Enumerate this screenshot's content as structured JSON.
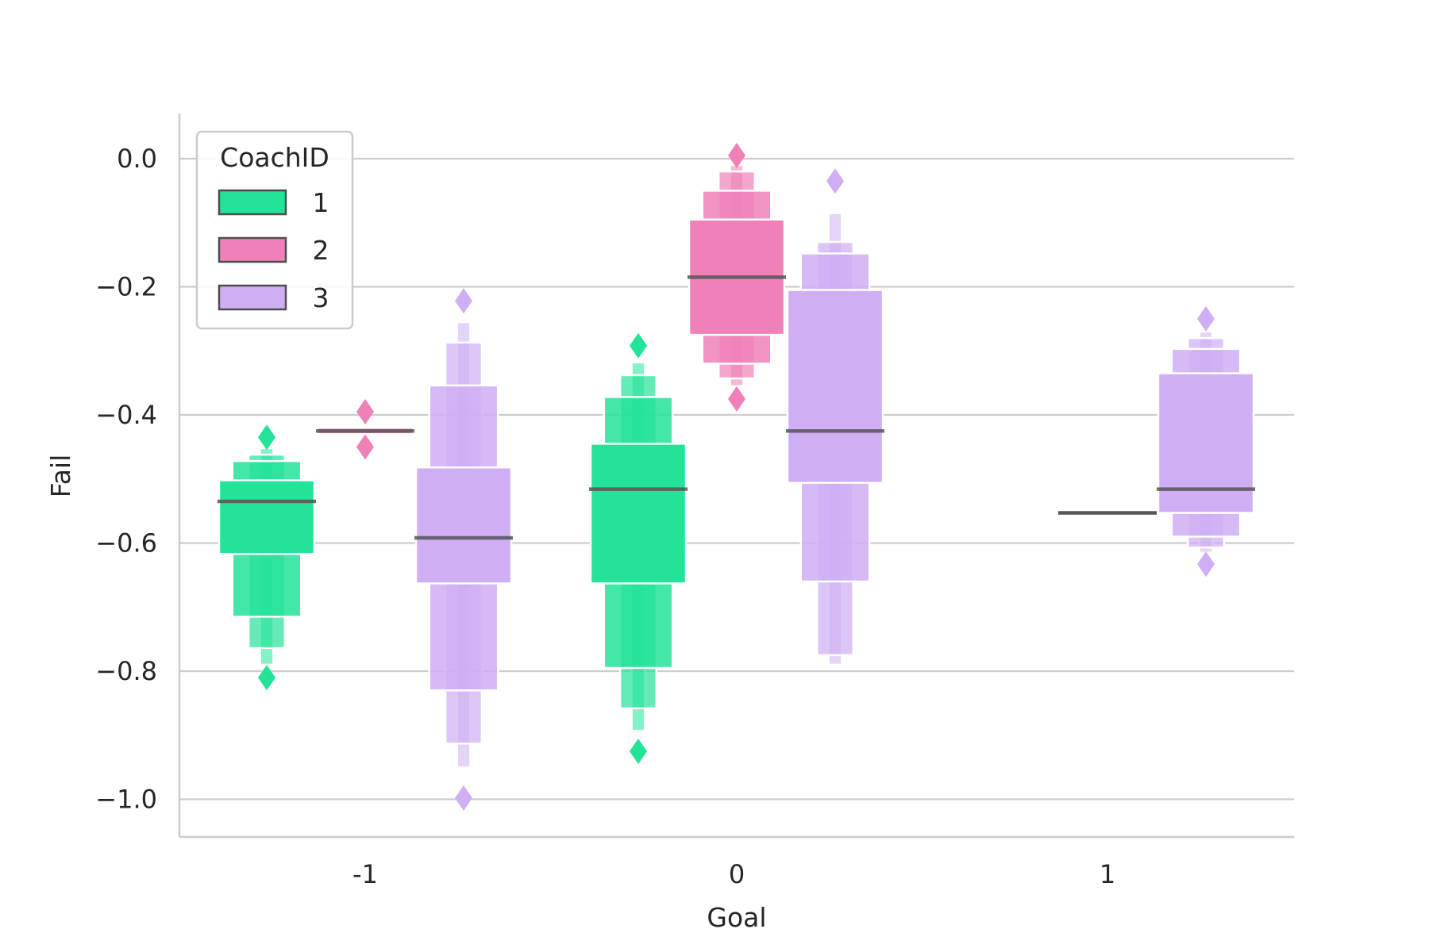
{
  "chart_data": {
    "type": "boxen",
    "title": "",
    "xlabel": "Goal",
    "ylabel": "Fail",
    "categories": [
      "-1",
      "0",
      "1"
    ],
    "yticks": [
      "0.0",
      "−0.2",
      "−0.4",
      "−0.6",
      "−0.8",
      "−1.0"
    ],
    "ytick_values": [
      0.0,
      -0.2,
      -0.4,
      -0.6,
      -0.8,
      -1.0
    ],
    "ylim": [
      -1.06,
      0.07
    ],
    "grid": "horizontal",
    "legend": {
      "title": "CoachID",
      "position": "top-left",
      "entries": [
        {
          "label": "1",
          "color": "#22e398"
        },
        {
          "label": "2",
          "color": "#ef80b8"
        },
        {
          "label": "3",
          "color": "#cfaef3"
        }
      ]
    },
    "series": [
      {
        "name": "1",
        "color": "#22e398",
        "boxes": [
          {
            "category": "-1",
            "median": -0.535,
            "levels": [
              [
                -0.617,
                -0.502
              ],
              [
                -0.715,
                -0.472
              ],
              [
                -0.764,
                -0.462
              ],
              [
                -0.79,
                -0.452
              ]
            ],
            "outliers": [
              -0.81,
              -0.435
            ]
          },
          {
            "category": "0",
            "median": -0.516,
            "levels": [
              [
                -0.663,
                -0.445
              ],
              [
                -0.795,
                -0.372
              ],
              [
                -0.858,
                -0.338
              ],
              [
                -0.893,
                -0.318
              ]
            ],
            "outliers": [
              -0.925,
              -0.292
            ]
          }
        ]
      },
      {
        "name": "2",
        "color": "#ef80b8",
        "boxes": [
          {
            "category": "-1",
            "median": -0.425,
            "levels": [
              [
                -0.43,
                -0.42
              ]
            ],
            "outliers": [
              -0.45,
              -0.395
            ]
          },
          {
            "category": "0",
            "median": -0.185,
            "levels": [
              [
                -0.275,
                -0.095
              ],
              [
                -0.32,
                -0.05
              ],
              [
                -0.343,
                -0.02
              ],
              [
                -0.355,
                -0.01
              ]
            ],
            "outliers": [
              -0.375,
              0.005
            ]
          }
        ]
      },
      {
        "name": "3",
        "color": "#cfaef3",
        "boxes": [
          {
            "category": "-1",
            "median": -0.592,
            "levels": [
              [
                -0.663,
                -0.482
              ],
              [
                -0.83,
                -0.354
              ],
              [
                -0.913,
                -0.287
              ],
              [
                -0.95,
                -0.255
              ]
            ],
            "outliers": [
              -0.998,
              -0.222
            ]
          },
          {
            "category": "0",
            "median": -0.425,
            "levels": [
              [
                -0.506,
                -0.205
              ],
              [
                -0.66,
                -0.148
              ],
              [
                -0.775,
                -0.13
              ],
              [
                -0.79,
                -0.085
              ]
            ],
            "outliers": [
              -0.035
            ]
          },
          {
            "category": "1",
            "median": -0.516,
            "levels": [
              [
                -0.553,
                -0.335
              ],
              [
                -0.59,
                -0.297
              ],
              [
                -0.607,
                -0.28
              ],
              [
                -0.615,
                -0.27
              ]
            ],
            "outliers": [
              -0.633,
              -0.25
            ]
          }
        ]
      }
    ],
    "extra_medians": [
      {
        "category": "1",
        "series": "2",
        "value": -0.553
      }
    ]
  }
}
